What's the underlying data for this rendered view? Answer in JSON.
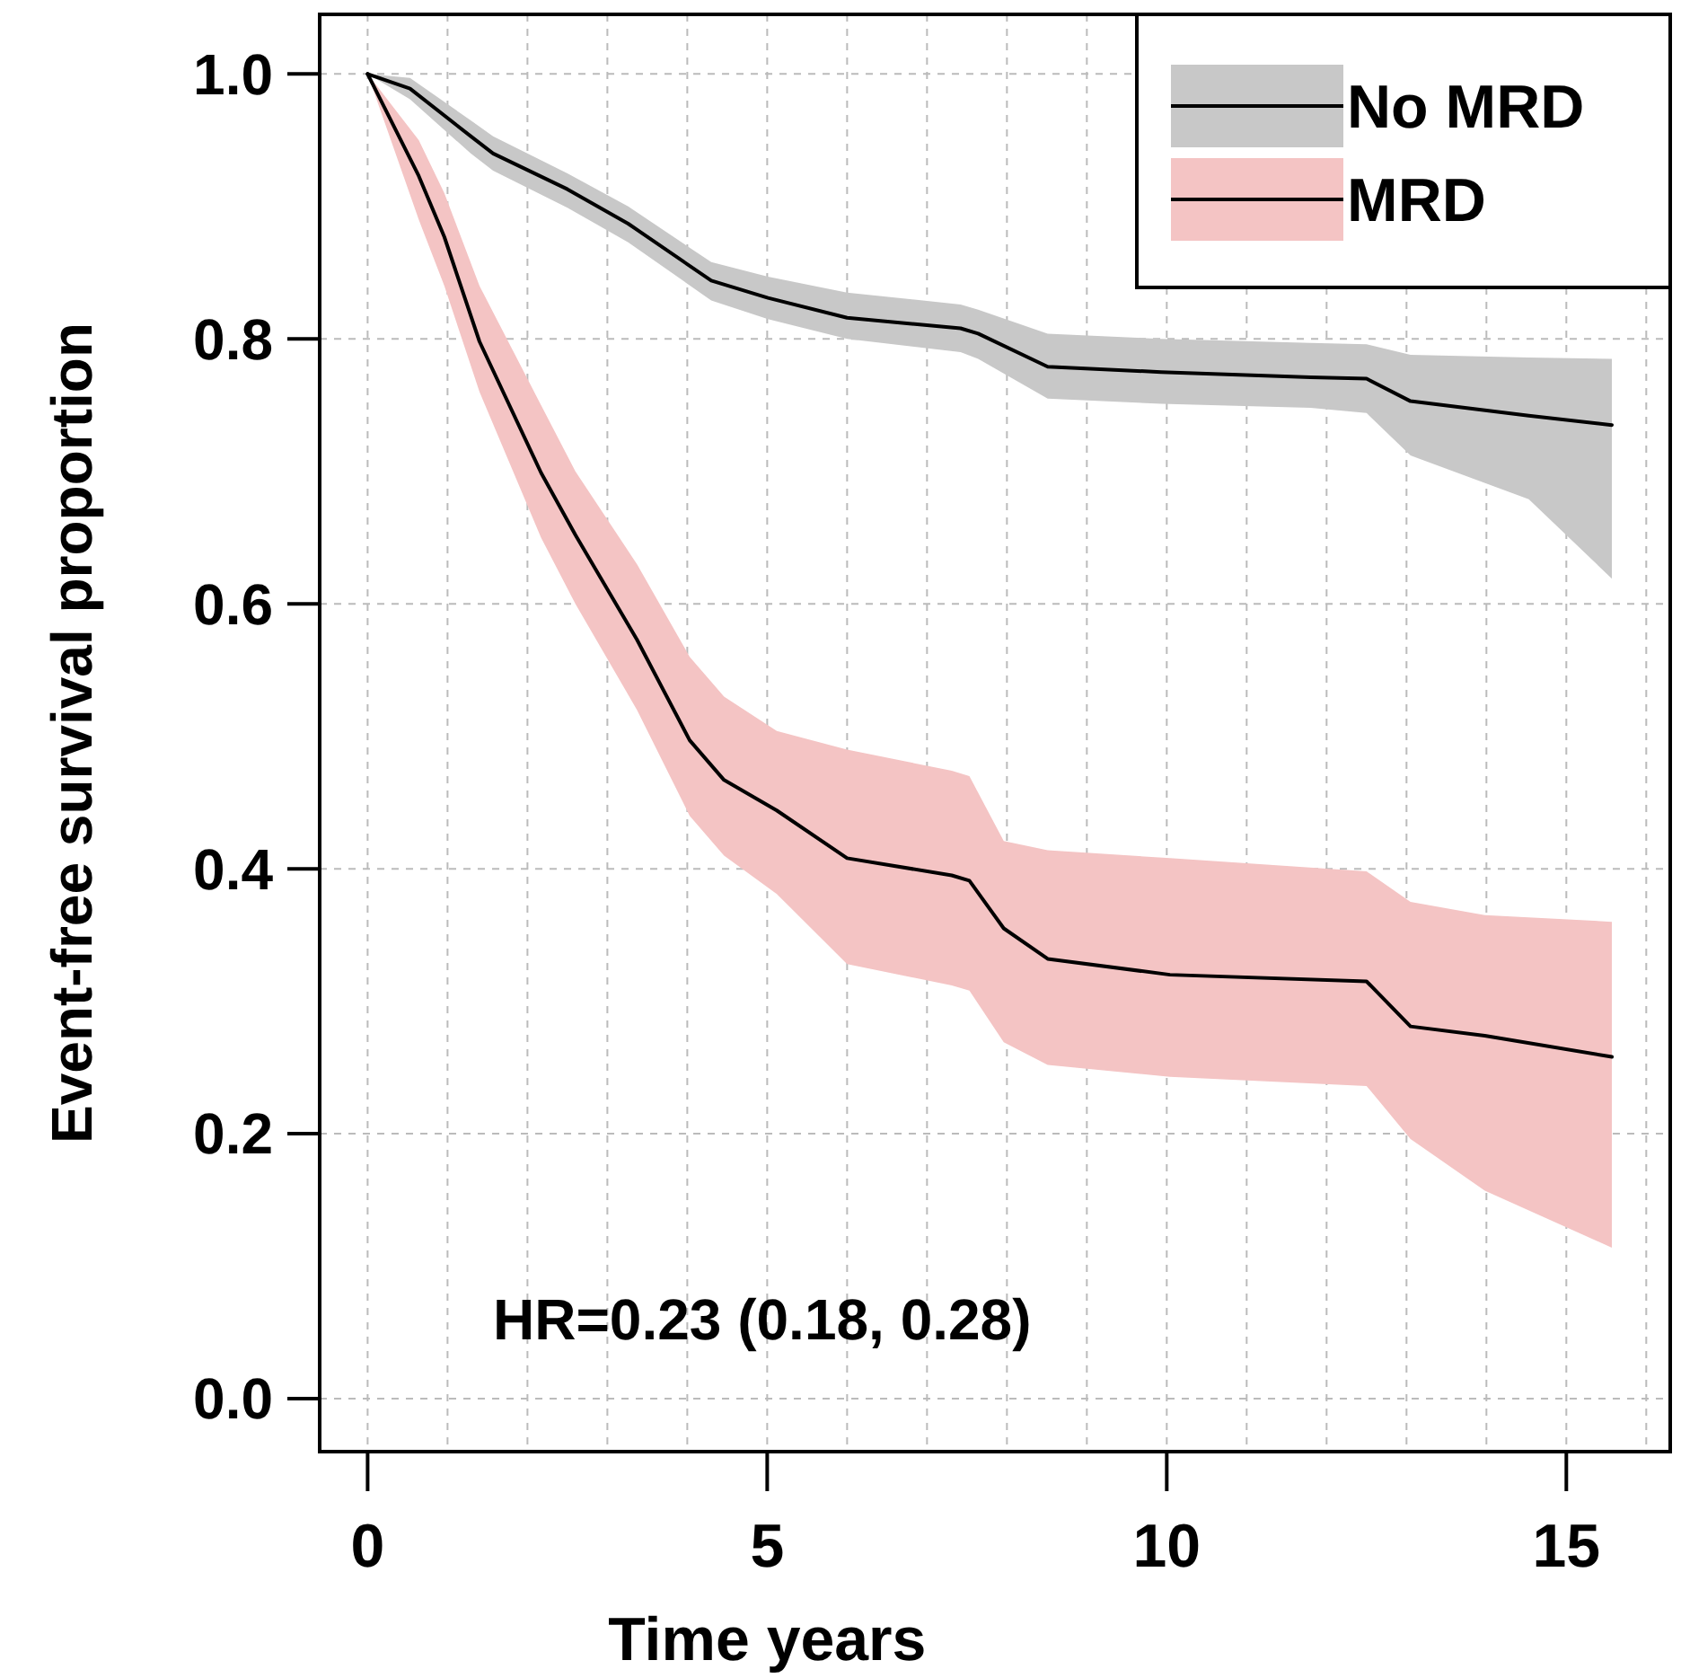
{
  "chart_data": {
    "type": "line",
    "xlabel": "Time years",
    "ylabel": "Event-free survival proportion",
    "xlim": [
      -0.6,
      16.3
    ],
    "ylim": [
      -0.04,
      1.045
    ],
    "xticks": [
      0,
      {
        "value": 1,
        "label": null
      },
      {
        "value": 2,
        "label": null
      },
      {
        "value": 3,
        "label": null
      },
      {
        "value": 4,
        "label": null
      },
      5,
      {
        "value": 6,
        "label": null
      },
      {
        "value": 7,
        "label": null
      },
      {
        "value": 8,
        "label": null
      },
      {
        "value": 9,
        "label": null
      },
      10,
      {
        "value": 11,
        "label": null
      },
      {
        "value": 12,
        "label": null
      },
      {
        "value": 13,
        "label": null
      },
      {
        "value": 14,
        "label": null
      },
      15,
      {
        "value": 16,
        "label": null
      }
    ],
    "yticks": [
      {
        "value": 0,
        "label": "0.0"
      },
      0.2,
      0.4,
      0.6,
      0.8,
      {
        "value": 1,
        "label": "1.0"
      }
    ],
    "grid": true,
    "legend": "top right",
    "line_style": "solid",
    "marker": "none",
    "annotations": [
      "HR=0.23 (0.18, 0.28)"
    ],
    "series": [
      {
        "name": "No MRD",
        "color": "#000000",
        "x": [
          0,
          0.53,
          1.29,
          1.57,
          2.5,
          3.26,
          4.3,
          5.01,
          6.0,
          7.42,
          7.64,
          8.51,
          9.93,
          11.8,
          12.5,
          13.05,
          14.53,
          15.57
        ],
        "values": [
          1.0,
          0.989,
          0.953,
          0.94,
          0.913,
          0.887,
          0.844,
          0.831,
          0.816,
          0.808,
          0.804,
          0.779,
          0.775,
          0.771,
          0.77,
          0.753,
          0.742,
          0.735
        ],
        "upper": [
          1.0,
          0.997,
          0.965,
          0.953,
          0.925,
          0.9,
          0.858,
          0.847,
          0.835,
          0.826,
          0.822,
          0.804,
          0.8,
          0.797,
          0.796,
          0.788,
          0.786,
          0.785
        ],
        "lower": [
          1.0,
          0.981,
          0.94,
          0.927,
          0.899,
          0.873,
          0.829,
          0.815,
          0.8,
          0.79,
          0.785,
          0.755,
          0.751,
          0.748,
          0.744,
          0.712,
          0.679,
          0.619
        ]
      },
      {
        "name": "MRD",
        "color": "#000000",
        "x": [
          0,
          0.64,
          0.96,
          1.4,
          2.17,
          2.6,
          3.37,
          4.03,
          4.46,
          5.12,
          6.0,
          7.31,
          7.53,
          7.96,
          8.51,
          10.04,
          12.5,
          13.05,
          13.98,
          15.57
        ],
        "values": [
          1.0,
          0.923,
          0.877,
          0.798,
          0.699,
          0.652,
          0.573,
          0.497,
          0.467,
          0.444,
          0.408,
          0.395,
          0.391,
          0.355,
          0.332,
          0.32,
          0.315,
          0.281,
          0.274,
          0.258
        ],
        "upper": [
          1.0,
          0.95,
          0.91,
          0.84,
          0.75,
          0.7,
          0.63,
          0.56,
          0.53,
          0.504,
          0.49,
          0.474,
          0.47,
          0.421,
          0.414,
          0.408,
          0.398,
          0.375,
          0.365,
          0.36
        ],
        "lower": [
          1.0,
          0.89,
          0.84,
          0.76,
          0.65,
          0.6,
          0.52,
          0.44,
          0.41,
          0.381,
          0.328,
          0.312,
          0.308,
          0.269,
          0.252,
          0.243,
          0.236,
          0.196,
          0.157,
          0.114
        ]
      }
    ]
  }
}
